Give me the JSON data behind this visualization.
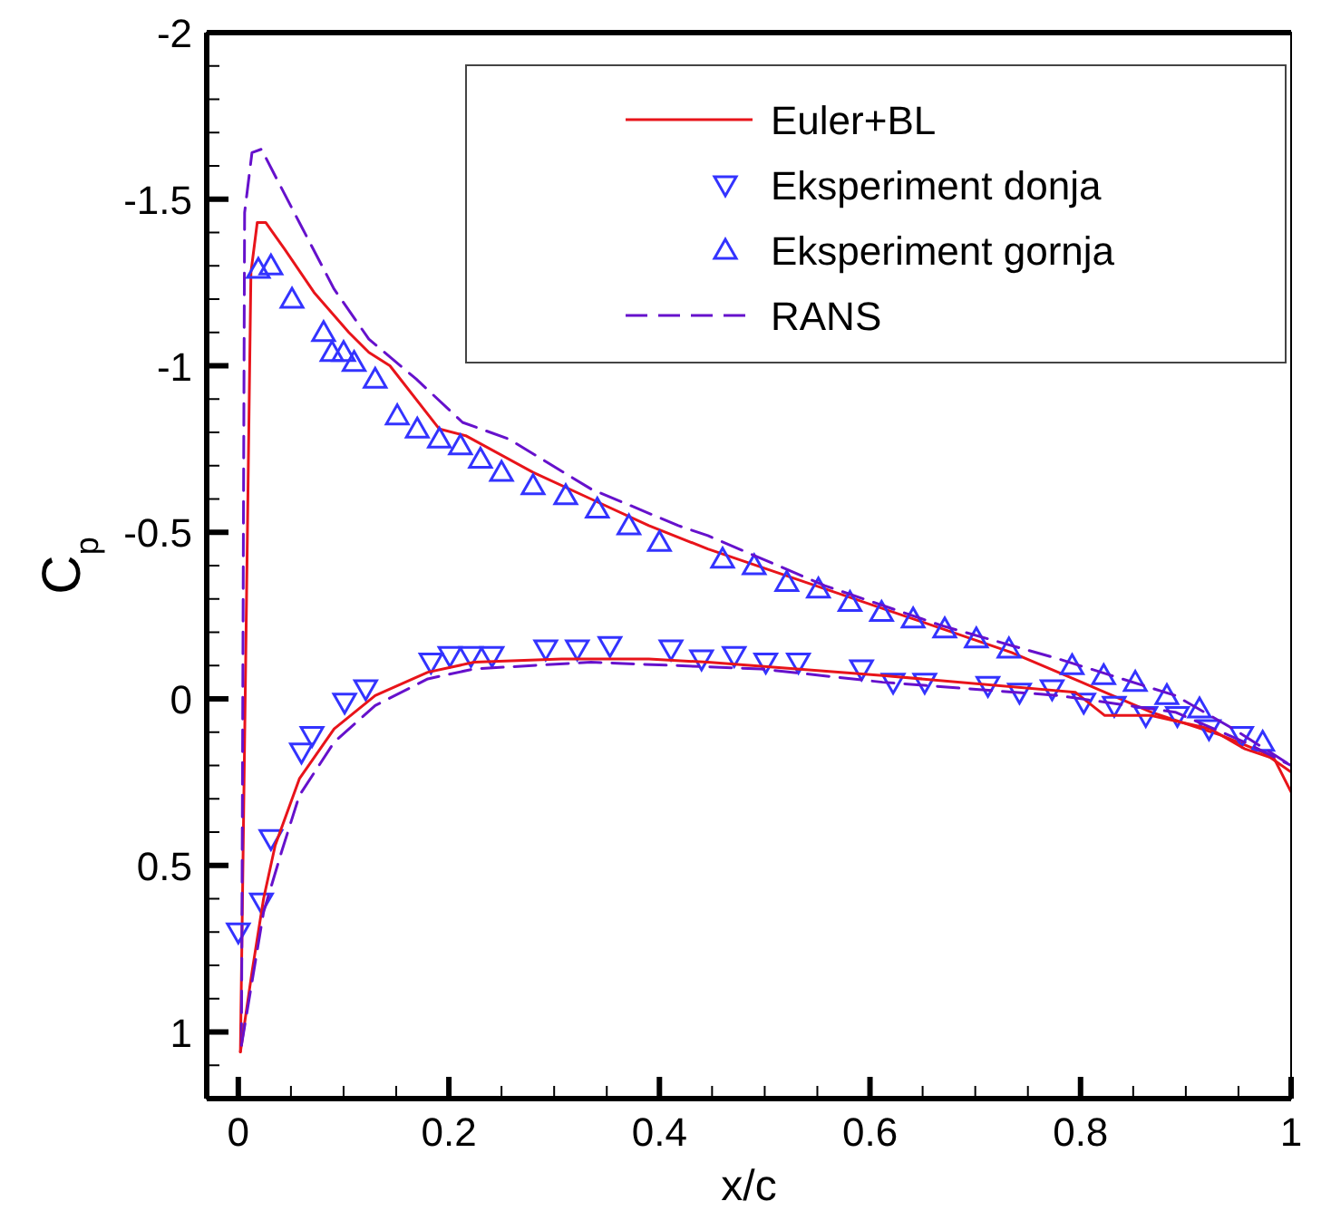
{
  "chart_data": {
    "type": "line",
    "xlabel": "x/c",
    "ylabel": "C$_{p}$",
    "xlim": [
      -0.03,
      1
    ],
    "ylim": [
      1.2,
      -2
    ],
    "xticks": [
      0,
      {
        "value": 0.05,
        "label": null
      },
      {
        "value": 0.1,
        "label": null
      },
      {
        "value": 0.15,
        "label": null
      },
      0.2,
      {
        "value": 0.25,
        "label": null
      },
      {
        "value": 0.3,
        "label": null
      },
      {
        "value": 0.35,
        "label": null
      },
      0.4,
      {
        "value": 0.45,
        "label": null
      },
      {
        "value": 0.5,
        "label": null
      },
      {
        "value": 0.55,
        "label": null
      },
      0.6,
      {
        "value": 0.65,
        "label": null
      },
      {
        "value": 0.7,
        "label": null
      },
      {
        "value": 0.75,
        "label": null
      },
      0.8,
      {
        "value": 0.85,
        "label": null
      },
      {
        "value": 0.9,
        "label": null
      },
      {
        "value": 0.95,
        "label": null
      },
      1
    ],
    "yticks": [
      -2,
      {
        "value": -1.9,
        "label": null
      },
      {
        "value": -1.8,
        "label": null
      },
      {
        "value": -1.7,
        "label": null
      },
      {
        "value": -1.6,
        "label": null
      },
      -1.5,
      {
        "value": -1.4,
        "label": null
      },
      {
        "value": -1.3,
        "label": null
      },
      {
        "value": -1.2,
        "label": null
      },
      {
        "value": -1.1,
        "label": null
      },
      -1,
      {
        "value": -0.9,
        "label": null
      },
      {
        "value": -0.8,
        "label": null
      },
      {
        "value": -0.7,
        "label": null
      },
      {
        "value": -0.6,
        "label": null
      },
      -0.5,
      {
        "value": -0.4,
        "label": null
      },
      {
        "value": -0.3,
        "label": null
      },
      {
        "value": -0.2,
        "label": null
      },
      {
        "value": -0.1,
        "label": null
      },
      0,
      {
        "value": 0.1,
        "label": null
      },
      {
        "value": 0.2,
        "label": null
      },
      {
        "value": 0.3,
        "label": null
      },
      {
        "value": 0.4,
        "label": null
      },
      0.5,
      {
        "value": 0.6,
        "label": null
      },
      {
        "value": 0.7,
        "label": null
      },
      {
        "value": 0.8,
        "label": null
      },
      {
        "value": 0.9,
        "label": null
      },
      1,
      {
        "value": 1.1,
        "label": null
      }
    ],
    "grid": false,
    "legend": "top right",
    "series": [
      {
        "name": "Euler+BL",
        "type": "line",
        "color": "#e8141a",
        "line_style": "solid",
        "marker": "none",
        "x": [
          0.002,
          0.012,
          0.018,
          0.026,
          0.044,
          0.072,
          0.105,
          0.124,
          0.144,
          0.191,
          0.216,
          0.28,
          0.335,
          0.39,
          0.446,
          0.734,
          0.801,
          0.867,
          0.934,
          0.973,
          1.0
        ],
        "values": [
          1.06,
          -1.28,
          -1.43,
          -1.43,
          -1.35,
          -1.22,
          -1.1,
          -1.04,
          -1.0,
          -0.81,
          -0.79,
          -0.68,
          -0.6,
          -0.52,
          -0.45,
          -0.14,
          -0.05,
          0.04,
          0.11,
          0.16,
          0.22
        ]
      },
      {
        "name": "Eksperiment donja",
        "type": "scatter",
        "color": "#3333ff",
        "marker": "triangle-down",
        "x": [
          0.0,
          0.022,
          0.031,
          0.06,
          0.07,
          0.101,
          0.121,
          0.183,
          0.201,
          0.221,
          0.241,
          0.292,
          0.322,
          0.353,
          0.411,
          0.44,
          0.471,
          0.501,
          0.532,
          0.592,
          0.622,
          0.652,
          0.712,
          0.742,
          0.773,
          0.803,
          0.832,
          0.862,
          0.892,
          0.922,
          0.953
        ],
        "values": [
          0.7,
          0.61,
          0.42,
          0.16,
          0.11,
          0.01,
          -0.03,
          -0.11,
          -0.13,
          -0.13,
          -0.13,
          -0.15,
          -0.15,
          -0.16,
          -0.15,
          -0.12,
          -0.13,
          -0.11,
          -0.11,
          -0.09,
          -0.05,
          -0.05,
          -0.04,
          -0.02,
          -0.03,
          0.01,
          0.02,
          0.05,
          0.05,
          0.09,
          0.11
        ]
      },
      {
        "name": "Eksperiment gornja",
        "type": "scatter",
        "color": "#3333ff",
        "marker": "triangle",
        "x": [
          0.019,
          0.031,
          0.051,
          0.081,
          0.089,
          0.1,
          0.11,
          0.13,
          0.151,
          0.17,
          0.191,
          0.211,
          0.23,
          0.25,
          0.28,
          0.311,
          0.341,
          0.371,
          0.4,
          0.46,
          0.49,
          0.521,
          0.551,
          0.581,
          0.611,
          0.641,
          0.671,
          0.701,
          0.732,
          0.792,
          0.822,
          0.852,
          0.882,
          0.913,
          0.973
        ],
        "values": [
          -1.29,
          -1.3,
          -1.2,
          -1.1,
          -1.04,
          -1.04,
          -1.01,
          -0.96,
          -0.85,
          -0.81,
          -0.78,
          -0.76,
          -0.72,
          -0.68,
          -0.64,
          -0.61,
          -0.57,
          -0.52,
          -0.47,
          -0.42,
          -0.4,
          -0.35,
          -0.33,
          -0.29,
          -0.26,
          -0.24,
          -0.21,
          -0.18,
          -0.15,
          -0.1,
          -0.07,
          -0.05,
          -0.01,
          0.03,
          0.13
        ]
      },
      {
        "name": "RANS",
        "type": "line",
        "color": "#6611cc",
        "line_style": "dashed",
        "marker": "none",
        "x": [
          0.003,
          0.006,
          0.013,
          0.022,
          0.035,
          0.058,
          0.091,
          0.124,
          0.169,
          0.213,
          0.257,
          0.335,
          0.418,
          0.446,
          0.557,
          0.668,
          0.779,
          0.89,
          0.945,
          1.0
        ],
        "values": [
          1.04,
          -1.46,
          -1.64,
          -1.65,
          -1.57,
          -1.43,
          -1.23,
          -1.08,
          -0.96,
          -0.83,
          -0.78,
          -0.63,
          -0.52,
          -0.49,
          -0.34,
          -0.22,
          -0.12,
          -0.01,
          0.09,
          0.2
        ]
      },
      {
        "type": "line",
        "color": "#e8141a",
        "line_style": "solid",
        "marker": "none",
        "x": [
          0.002,
          0.013,
          0.024,
          0.035,
          0.058,
          0.091,
          0.13,
          0.18,
          0.224,
          0.307,
          0.39,
          0.446,
          0.612,
          0.795,
          0.823,
          0.867,
          0.923,
          0.956,
          0.984,
          1.0
        ],
        "values": [
          1.06,
          0.82,
          0.6,
          0.44,
          0.24,
          0.09,
          -0.01,
          -0.08,
          -0.11,
          -0.12,
          -0.12,
          -0.11,
          -0.07,
          -0.02,
          0.05,
          0.05,
          0.09,
          0.15,
          0.18,
          0.28
        ]
      },
      {
        "type": "line",
        "color": "#6611cc",
        "line_style": "dashed",
        "marker": "none",
        "x": [
          0.003,
          0.024,
          0.041,
          0.058,
          0.091,
          0.13,
          0.18,
          0.224,
          0.335,
          0.496,
          0.612,
          0.779,
          0.89,
          0.956,
          1.0
        ],
        "values": [
          1.04,
          0.64,
          0.46,
          0.29,
          0.13,
          0.02,
          -0.06,
          -0.09,
          -0.11,
          -0.09,
          -0.05,
          -0.01,
          0.04,
          0.13,
          0.2
        ]
      }
    ]
  }
}
